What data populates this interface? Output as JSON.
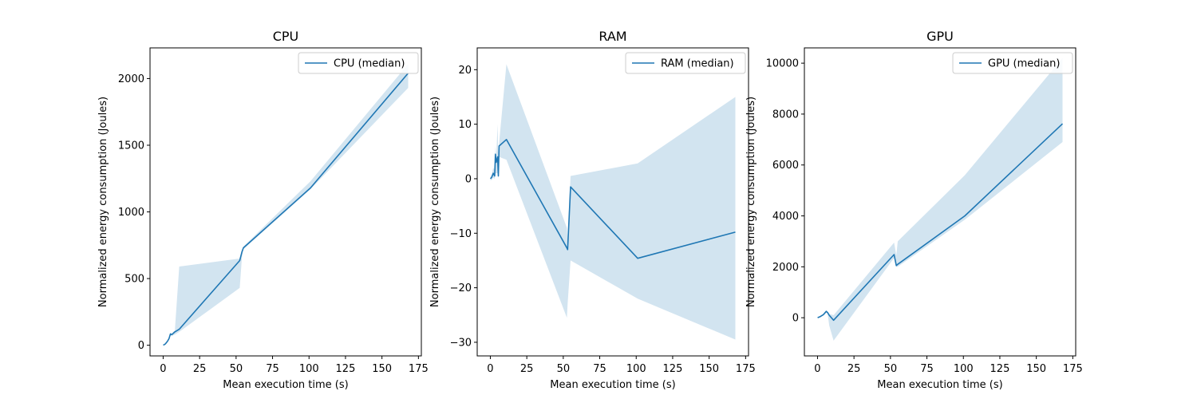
{
  "chart_data": [
    {
      "type": "line",
      "title": "CPU",
      "xlabel": "Mean execution time (s)",
      "ylabel": "Normalized energy consumption (Joules)",
      "xlim": [
        -9,
        177
      ],
      "ylim": [
        -80,
        2230
      ],
      "xticks": [
        0,
        25,
        50,
        75,
        100,
        125,
        150,
        175
      ],
      "yticks": [
        0,
        500,
        1000,
        1500,
        2000
      ],
      "legend_position": "upper right",
      "series": [
        {
          "name": "CPU (median)",
          "color": "#1f77b4",
          "x": [
            0.1,
            1.5,
            3,
            4,
            5,
            6,
            7,
            8,
            11,
            52.5,
            54,
            55,
            101,
            168
          ],
          "y": [
            0,
            10,
            30,
            50,
            85,
            80,
            90,
            100,
            120,
            635,
            700,
            730,
            1180,
            2040
          ]
        }
      ],
      "band": {
        "color": "#1f77b4",
        "opacity": 0.2,
        "x": [
          0.1,
          1.5,
          3,
          4,
          5,
          6,
          7,
          8,
          11,
          52.5,
          54,
          55,
          101,
          168
        ],
        "upper": [
          0,
          12,
          35,
          60,
          90,
          85,
          100,
          110,
          590,
          650,
          700,
          740,
          1230,
          2110
        ],
        "lower": [
          0,
          8,
          25,
          40,
          70,
          70,
          75,
          80,
          100,
          430,
          660,
          720,
          1170,
          1930
        ]
      }
    },
    {
      "type": "line",
      "title": "RAM",
      "xlabel": "Mean execution time (s)",
      "ylabel": "Normalized energy consumption (Joules)",
      "xlim": [
        -9,
        177
      ],
      "ylim": [
        -32.5,
        24
      ],
      "xticks": [
        0,
        25,
        50,
        75,
        100,
        125,
        150,
        175
      ],
      "yticks": [
        -30,
        -20,
        -10,
        0,
        10,
        20
      ],
      "legend_position": "upper right",
      "series": [
        {
          "name": "RAM (median)",
          "color": "#1f77b4",
          "x": [
            0.1,
            1,
            2,
            3,
            3.5,
            4,
            5,
            5.5,
            6,
            11,
            52.5,
            53,
            55,
            101,
            168
          ],
          "y": [
            0,
            0.3,
            1,
            0.5,
            4.5,
            3,
            4,
            0.5,
            6,
            7.2,
            -12.7,
            -13,
            -1.5,
            -14.6,
            -9.8
          ]
        }
      ],
      "band": {
        "color": "#1f77b4",
        "opacity": 0.2,
        "x": [
          0.1,
          1,
          2,
          3,
          3.5,
          4,
          5,
          5.5,
          6,
          11,
          52.5,
          53,
          55,
          101,
          168
        ],
        "upper": [
          0.3,
          0.8,
          2,
          1.5,
          6,
          4,
          10,
          3,
          6.5,
          21,
          -9,
          -11,
          0.5,
          2.8,
          15
        ],
        "lower": [
          -0.3,
          -0.2,
          0.2,
          0,
          1,
          1,
          1,
          0,
          4,
          3.5,
          -25.5,
          -23,
          -15,
          -22,
          -29.5
        ]
      }
    },
    {
      "type": "line",
      "title": "GPU",
      "xlabel": "Mean execution time (s)",
      "ylabel": "Normalized energy consumption (Joules)",
      "xlim": [
        -9,
        177
      ],
      "ylim": [
        -1500,
        10600
      ],
      "xticks": [
        0,
        25,
        50,
        75,
        100,
        125,
        150,
        175
      ],
      "yticks": [
        0,
        2000,
        4000,
        6000,
        8000,
        10000
      ],
      "legend_position": "upper right",
      "series": [
        {
          "name": "GPU (median)",
          "color": "#1f77b4",
          "x": [
            0.1,
            2,
            4,
            6,
            7,
            8,
            11,
            52.5,
            54,
            55,
            101,
            168
          ],
          "y": [
            0,
            50,
            120,
            250,
            200,
            100,
            -100,
            2480,
            2050,
            2100,
            4000,
            7620
          ]
        }
      ],
      "band": {
        "color": "#1f77b4",
        "opacity": 0.2,
        "x": [
          0.1,
          2,
          4,
          6,
          7,
          8,
          11,
          52.5,
          54,
          55,
          101,
          168
        ],
        "upper": [
          0,
          80,
          150,
          300,
          250,
          150,
          100,
          2950,
          2450,
          3000,
          5600,
          10200
        ],
        "lower": [
          0,
          20,
          90,
          200,
          150,
          -300,
          -900,
          2350,
          2000,
          2000,
          3850,
          6900
        ]
      }
    }
  ]
}
